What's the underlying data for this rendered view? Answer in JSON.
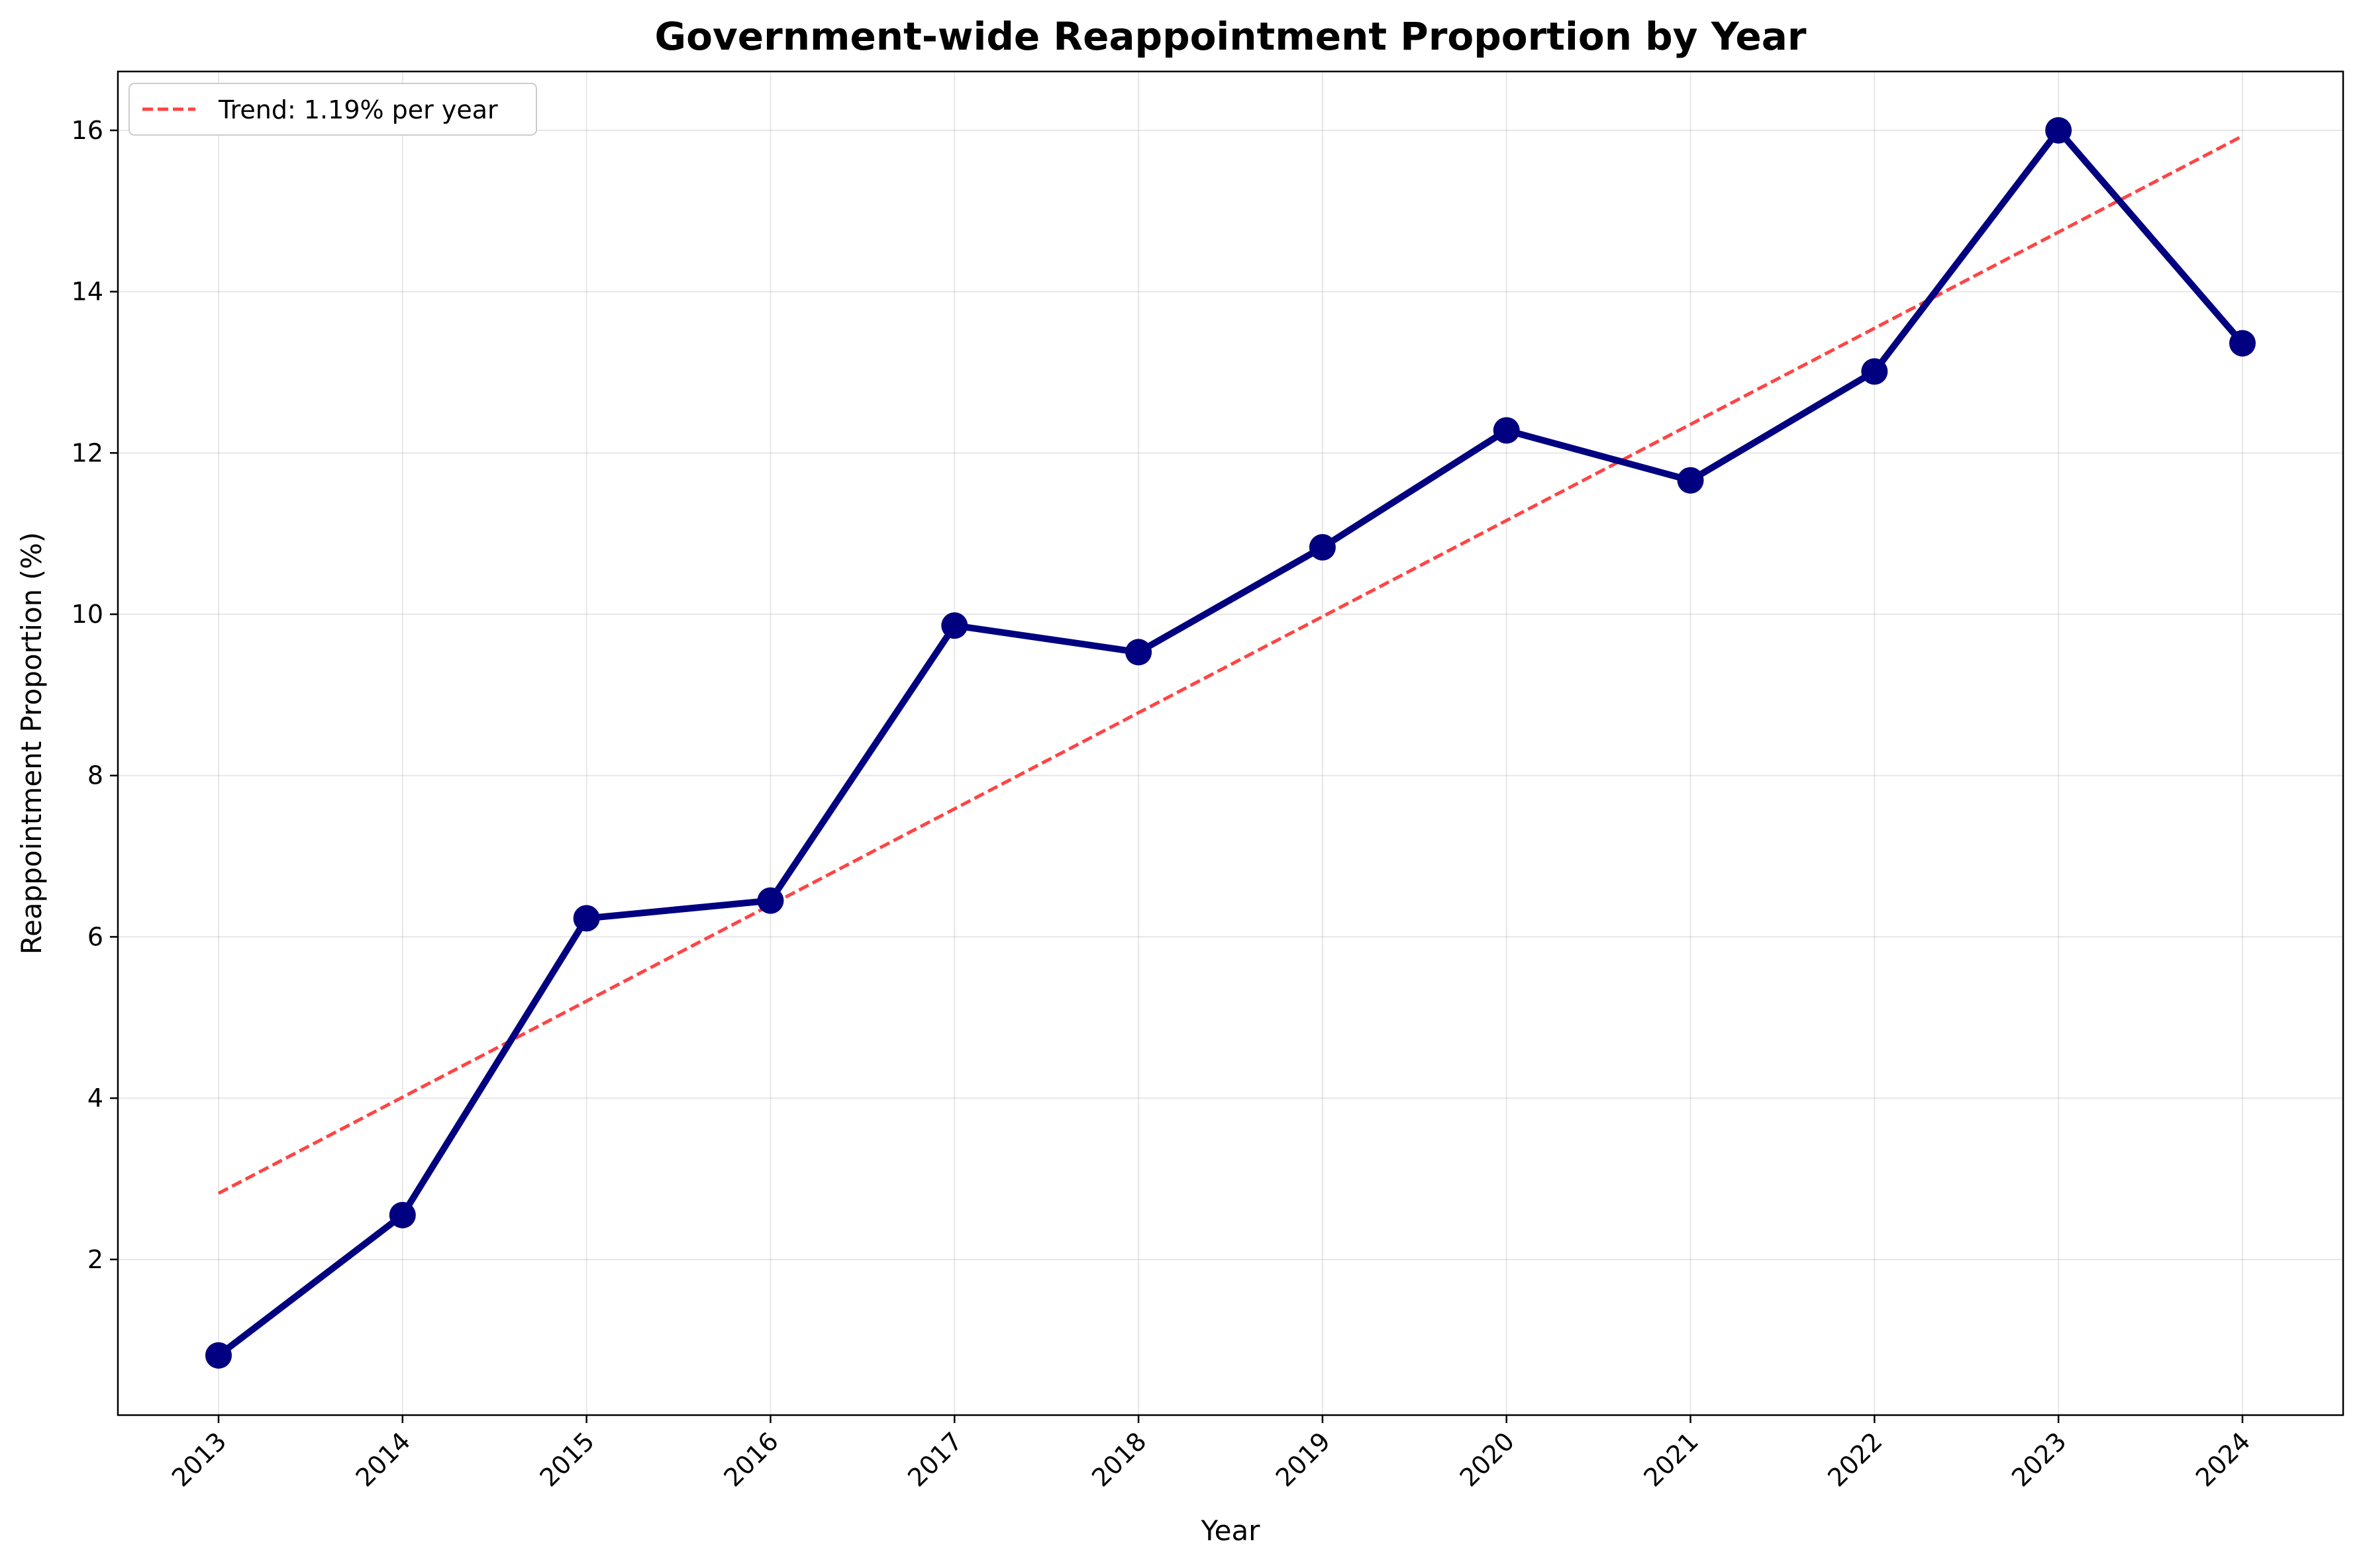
{
  "chart_data": {
    "type": "line",
    "title": "Government-wide Reappointment Proportion by Year",
    "xlabel": "Year",
    "ylabel": "Reappointment Proportion (%)",
    "categories": [
      "2013",
      "2014",
      "2015",
      "2016",
      "2017",
      "2018",
      "2019",
      "2020",
      "2021",
      "2022",
      "2023",
      "2024"
    ],
    "series": [
      {
        "values": [
          0.81,
          2.55,
          6.23,
          6.45,
          9.86,
          9.53,
          10.83,
          12.28,
          11.66,
          13.01,
          16.0,
          13.36
        ],
        "color": "#000080"
      }
    ],
    "trend": {
      "label": "Trend: 1.19% per year",
      "start": 2.82,
      "end": 15.93,
      "color": "#ff4444"
    },
    "yticks": [
      2,
      4,
      6,
      8,
      10,
      12,
      14,
      16
    ],
    "ylim": [
      0.07,
      16.73
    ],
    "grid": true,
    "legend_position": "top-left"
  }
}
